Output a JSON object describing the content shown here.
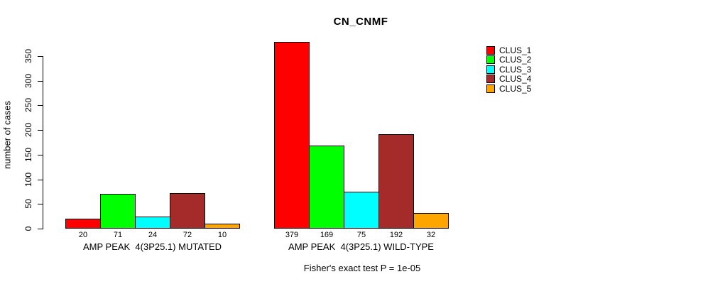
{
  "chart_data": {
    "type": "bar",
    "title": "CN_CNMF",
    "ylabel": "number of cases",
    "xlabel": "",
    "ylim": [
      0,
      379
    ],
    "yticks": [
      0,
      50,
      100,
      150,
      200,
      250,
      300,
      350
    ],
    "grid": false,
    "legend_position": "right",
    "bar_value_labels_shown": true,
    "categories": [
      "AMP PEAK  4(3P25.1) MUTATED",
      "AMP PEAK  4(3P25.1) WILD-TYPE"
    ],
    "series": [
      {
        "name": "CLUS_1",
        "color": "#FF0000",
        "values": [
          20,
          379
        ]
      },
      {
        "name": "CLUS_2",
        "color": "#00FF00",
        "values": [
          71,
          169
        ]
      },
      {
        "name": "CLUS_3",
        "color": "#00FFFF",
        "values": [
          24,
          75
        ]
      },
      {
        "name": "CLUS_4",
        "color": "#A52A2A",
        "values": [
          72,
          192
        ]
      },
      {
        "name": "CLUS_5",
        "color": "#FFA500",
        "values": [
          10,
          32
        ]
      }
    ],
    "annotation": "Fisher's exact test P = 1e-05",
    "background_color": "#FFFFFF",
    "axis_color": "#000000"
  }
}
